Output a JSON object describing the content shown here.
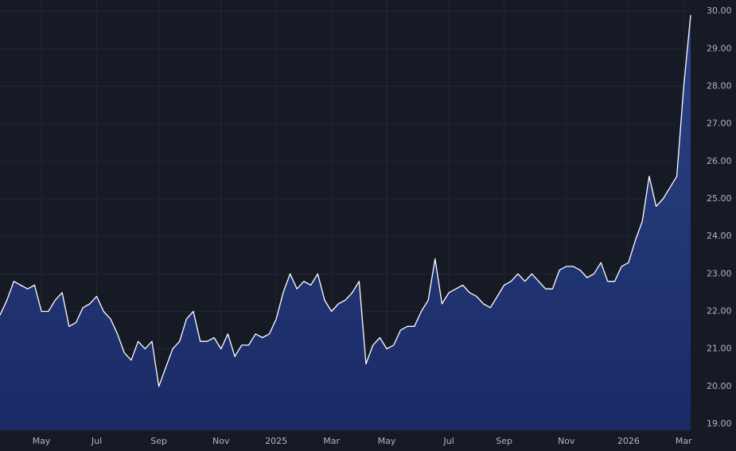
{
  "chart_data": {
    "type": "area",
    "color": "#ffffff",
    "fill": "#1f3370",
    "grid": true,
    "categories": [
      null,
      null,
      null,
      null,
      null,
      null,
      "May",
      null,
      null,
      null,
      null,
      null,
      null,
      null,
      "Jul",
      null,
      null,
      null,
      null,
      null,
      null,
      null,
      null,
      "Sep",
      null,
      null,
      null,
      null,
      null,
      null,
      null,
      null,
      "Nov",
      null,
      null,
      null,
      null,
      null,
      null,
      null,
      "2025",
      null,
      null,
      null,
      null,
      null,
      null,
      null,
      "Mar",
      null,
      null,
      null,
      null,
      null,
      null,
      null,
      "May",
      null,
      null,
      null,
      null,
      null,
      null,
      null,
      null,
      "Jul",
      null,
      null,
      null,
      null,
      null,
      null,
      null,
      "Sep",
      null,
      null,
      null,
      null,
      null,
      null,
      null,
      null,
      "Nov",
      null,
      null,
      null,
      null,
      null,
      null,
      null,
      null,
      "2026",
      null,
      null,
      null,
      null,
      null,
      null,
      null,
      "Mar",
      null
    ],
    "values": [
      21.9,
      22.3,
      22.8,
      22.7,
      22.6,
      22.7,
      22.0,
      22.0,
      22.3,
      22.5,
      21.6,
      21.7,
      22.1,
      22.2,
      22.4,
      22.0,
      21.8,
      21.4,
      20.9,
      20.7,
      21.2,
      21.0,
      21.2,
      20.0,
      20.5,
      21.0,
      21.2,
      21.8,
      22.0,
      21.2,
      21.2,
      21.3,
      21.0,
      21.4,
      20.8,
      21.1,
      21.1,
      21.4,
      21.3,
      21.4,
      21.8,
      22.5,
      23.0,
      22.6,
      22.8,
      22.7,
      23.0,
      22.3,
      22.0,
      22.2,
      22.3,
      22.5,
      22.8,
      20.6,
      21.1,
      21.3,
      21.0,
      21.1,
      21.5,
      21.6,
      21.6,
      22.0,
      22.3,
      23.4,
      22.2,
      22.5,
      22.6,
      22.7,
      22.5,
      22.4,
      22.2,
      22.1,
      22.4,
      22.7,
      22.8,
      23.0,
      22.8,
      23.0,
      22.8,
      22.6,
      22.6,
      23.1,
      23.2,
      23.2,
      23.1,
      22.9,
      23.0,
      23.3,
      22.8,
      22.8,
      23.2,
      23.3,
      23.9,
      24.4,
      25.6,
      24.8,
      25.0,
      25.3,
      25.6,
      28.0,
      29.9
    ],
    "ylim": [
      18.83,
      30.3
    ],
    "yticks": [
      {
        "value": 19,
        "label": "19.00"
      },
      {
        "value": 20,
        "label": "20.00"
      },
      {
        "value": 21,
        "label": "21.00"
      },
      {
        "value": 22,
        "label": "22.00"
      },
      {
        "value": 23,
        "label": "23.00"
      },
      {
        "value": 24,
        "label": "24.00"
      },
      {
        "value": 25,
        "label": "25.00"
      },
      {
        "value": 26,
        "label": "26.00"
      },
      {
        "value": 27,
        "label": "27.00"
      },
      {
        "value": 28,
        "label": "28.00"
      },
      {
        "value": 29,
        "label": "29.00"
      },
      {
        "value": 30,
        "label": "30.00"
      }
    ]
  }
}
